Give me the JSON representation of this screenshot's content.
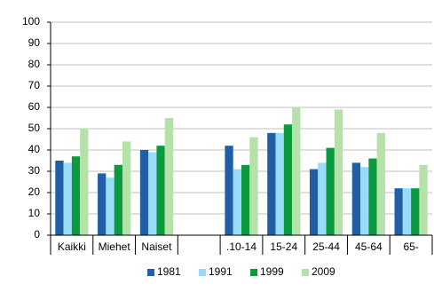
{
  "chart_data": {
    "type": "bar",
    "categories": [
      "Kaikki",
      "Miehet",
      "Naiset",
      null,
      ".10-14",
      "15-24",
      "25-44",
      "45-64",
      "65-"
    ],
    "series": [
      {
        "name": "1981",
        "color": "#1f5fa8",
        "values": [
          35,
          29,
          40,
          null,
          42,
          48,
          31,
          34,
          22
        ]
      },
      {
        "name": "1991",
        "color": "#99dcf7",
        "values": [
          34,
          27,
          39,
          null,
          31,
          48,
          34,
          32,
          22
        ]
      },
      {
        "name": "1999",
        "color": "#0c9a3e",
        "values": [
          37,
          33,
          42,
          null,
          33,
          52,
          41,
          36,
          22
        ]
      },
      {
        "name": "2009",
        "color": "#b5e2a9",
        "values": [
          50,
          44,
          55,
          null,
          46,
          60,
          59,
          48,
          33
        ]
      }
    ],
    "ylim": [
      0,
      100
    ],
    "yticks": [
      0,
      10,
      20,
      30,
      40,
      50,
      60,
      70,
      80,
      90,
      100
    ],
    "grid": true,
    "legend": "bottom"
  }
}
